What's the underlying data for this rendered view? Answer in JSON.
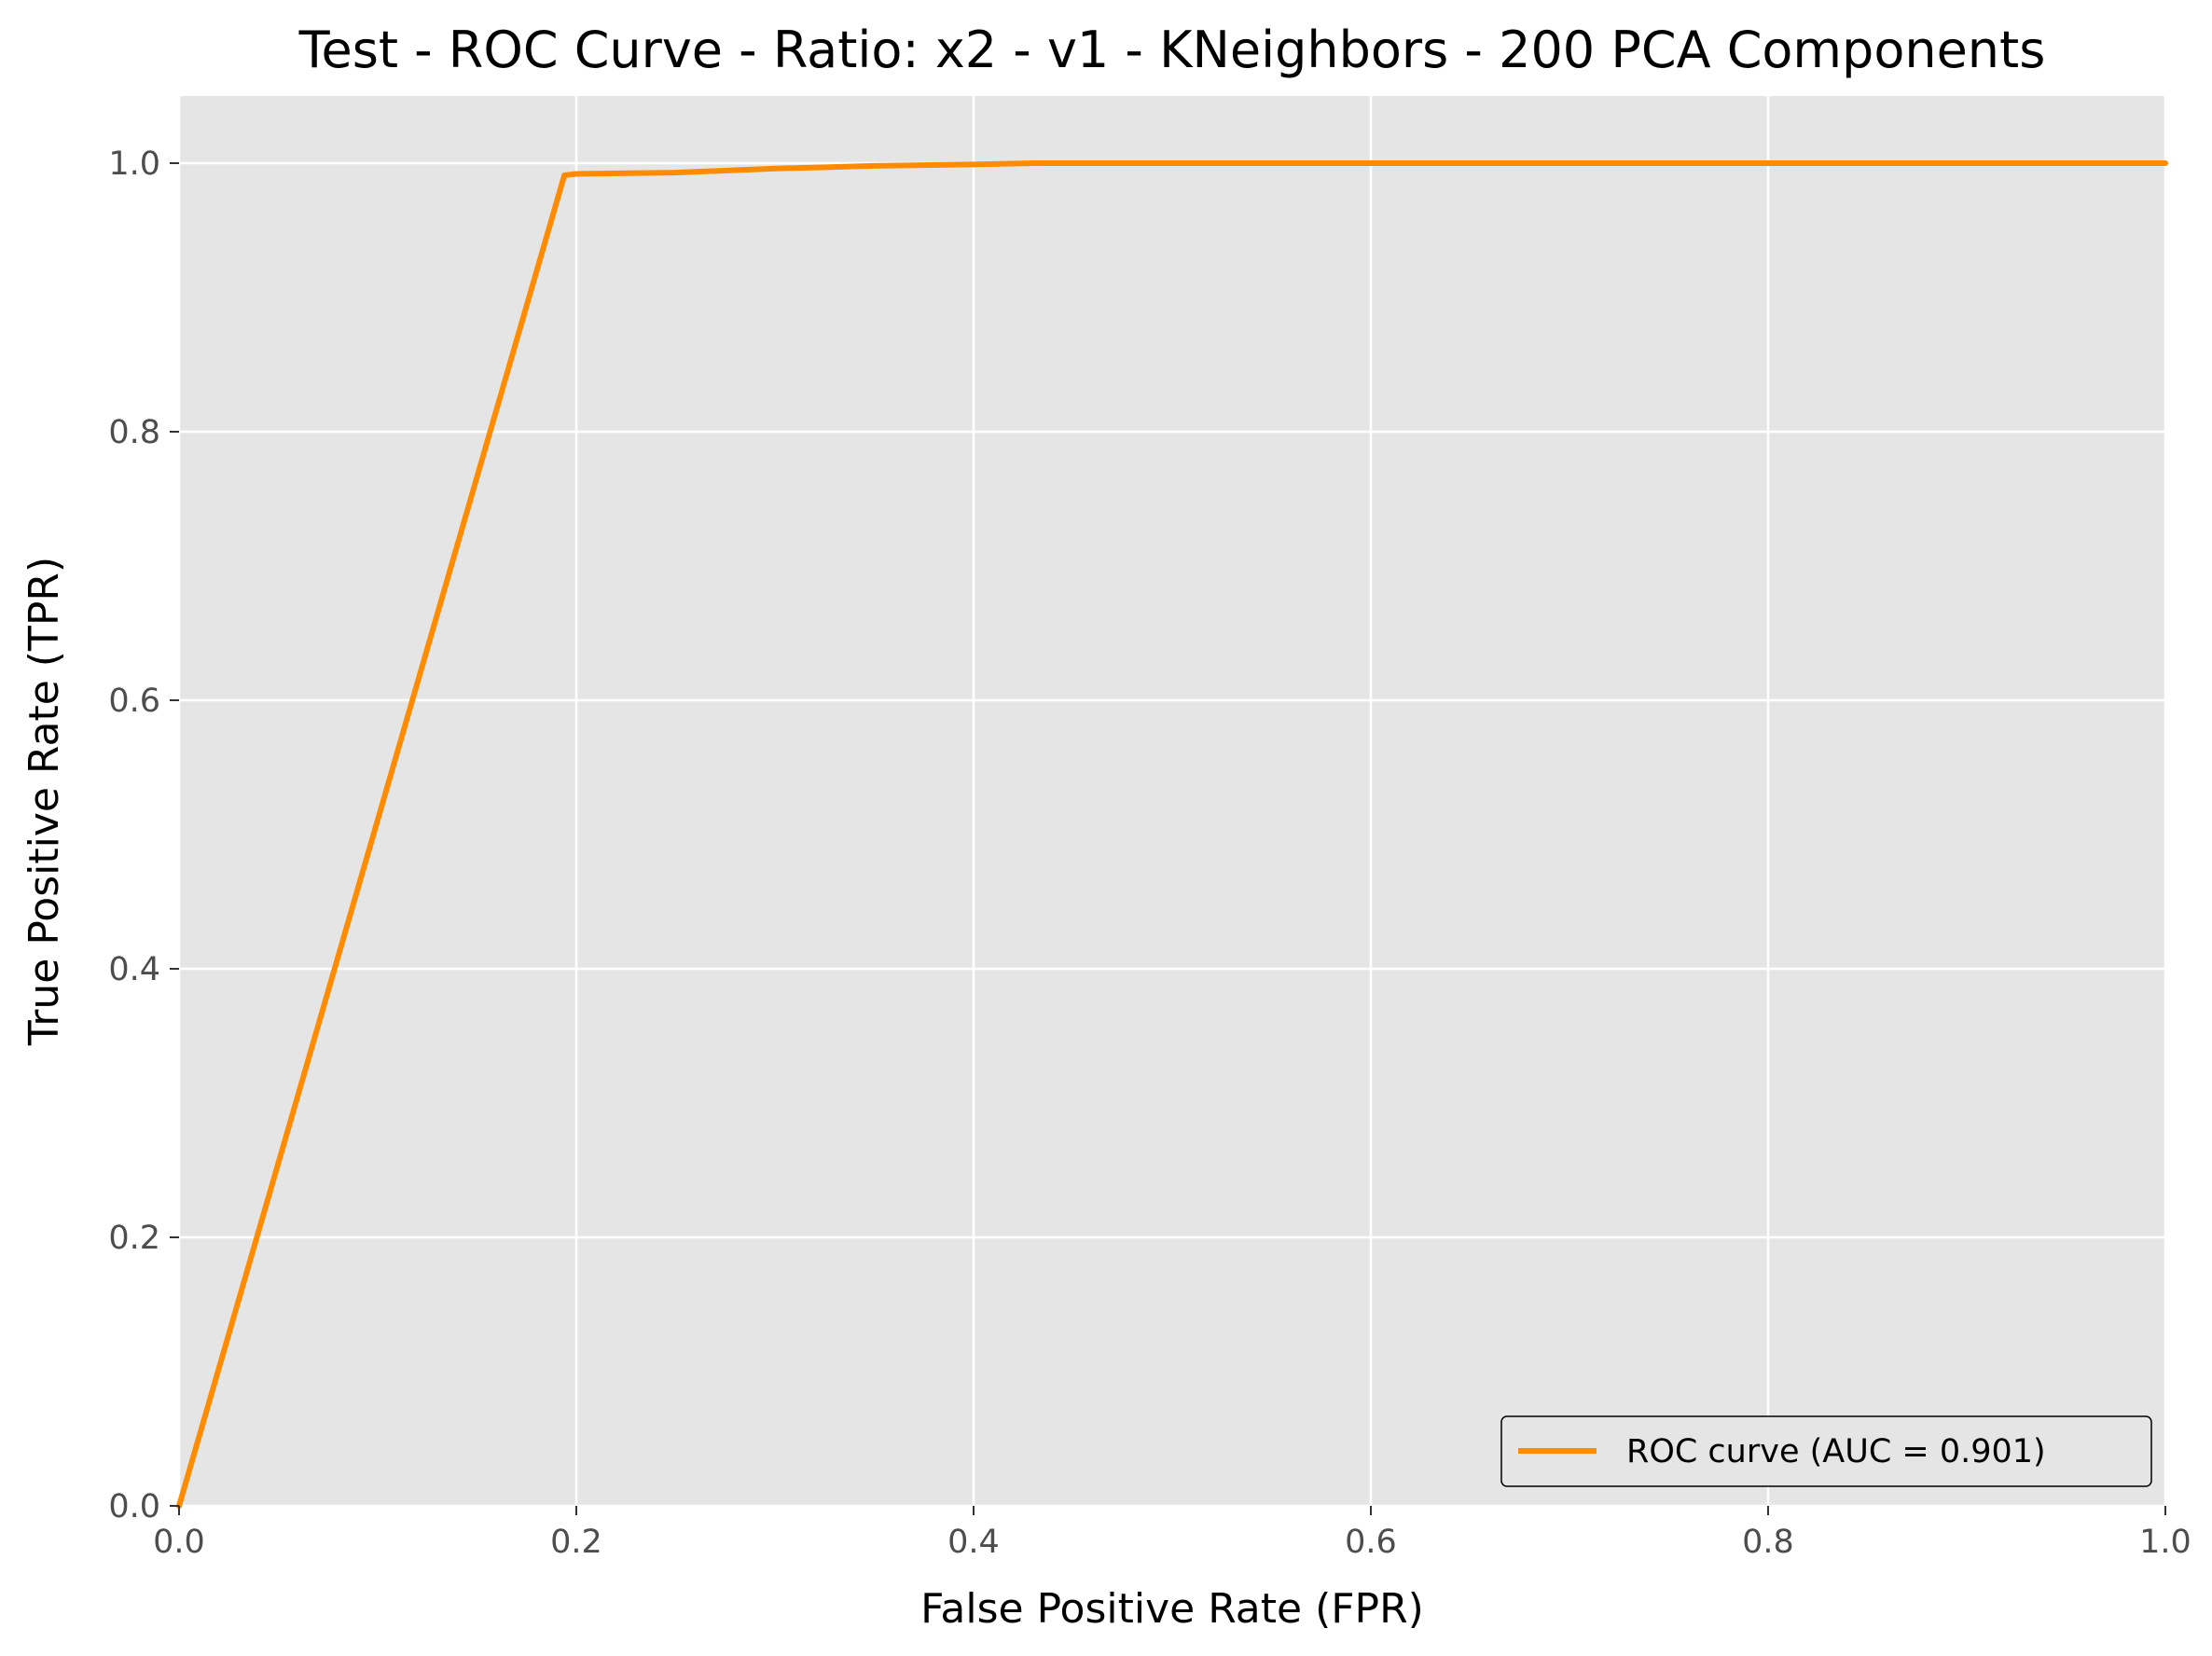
{
  "chart_data": {
    "type": "line",
    "title": "Test - ROC Curve - Ratio: x2 - v1 - KNeighbors - 200 PCA Components",
    "xlabel": "False Positive Rate (FPR)",
    "ylabel": "True Positive Rate (TPR)",
    "xlim": [
      0.0,
      1.0
    ],
    "ylim": [
      0.0,
      1.05
    ],
    "xticks": [
      0.0,
      0.2,
      0.4,
      0.6,
      0.8,
      1.0
    ],
    "xtick_labels": [
      "0.0",
      "0.2",
      "0.4",
      "0.6",
      "0.8",
      "1.0"
    ],
    "yticks": [
      0.0,
      0.2,
      0.4,
      0.6,
      0.8,
      1.0
    ],
    "ytick_labels": [
      "0.0",
      "0.2",
      "0.4",
      "0.6",
      "0.8",
      "1.0"
    ],
    "grid": true,
    "legend_position": "lower-right",
    "background_color": "#e5e5e5",
    "grid_color": "#ffffff",
    "series": [
      {
        "name": "ROC curve (AUC = 0.901)",
        "color": "#ff8c00",
        "x": [
          0.0,
          0.194,
          0.2,
          0.25,
          0.3,
          0.35,
          0.4,
          0.43,
          0.5,
          1.0
        ],
        "y": [
          0.0,
          0.991,
          0.992,
          0.993,
          0.996,
          0.998,
          0.999,
          1.0,
          1.0,
          1.0
        ]
      }
    ]
  }
}
